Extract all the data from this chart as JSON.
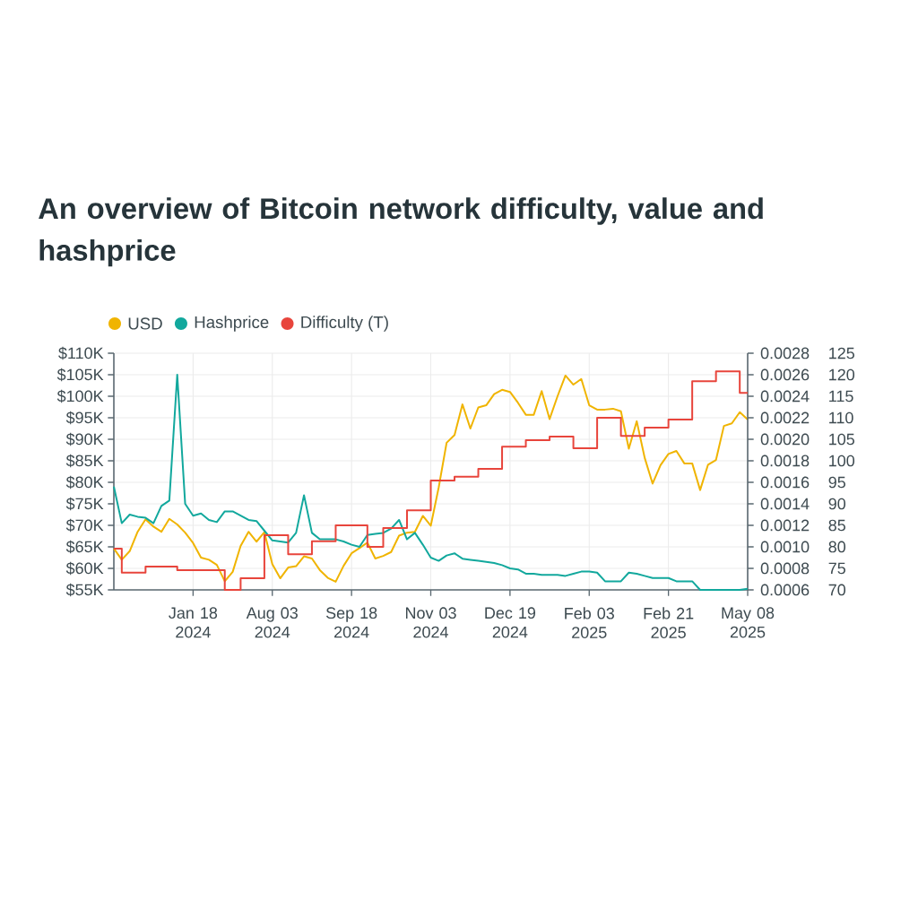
{
  "chart_data": {
    "type": "line",
    "title": "An overview of Bitcoin network difficulty, value and hashprice",
    "categories": [
      null,
      null,
      null,
      null,
      null,
      null,
      null,
      null,
      null,
      null,
      "Jan 18 2024",
      null,
      null,
      null,
      null,
      null,
      null,
      null,
      null,
      null,
      "Aug 03 2024",
      null,
      null,
      null,
      null,
      null,
      null,
      null,
      null,
      null,
      "Sep 18 2024",
      null,
      null,
      null,
      null,
      null,
      null,
      null,
      null,
      null,
      "Nov 03 2024",
      null,
      null,
      null,
      null,
      null,
      null,
      null,
      null,
      null,
      "Dec 19 2024",
      null,
      null,
      null,
      null,
      null,
      null,
      null,
      null,
      null,
      "Feb 03 2025",
      null,
      null,
      null,
      null,
      null,
      null,
      null,
      null,
      null,
      "Feb 21 2025",
      null,
      null,
      null,
      null,
      null,
      null,
      null,
      null,
      null,
      "May 08 2025"
    ],
    "ylim": [
      55000,
      110000
    ],
    "yticks": [
      {
        "value": 55000,
        "label": "$55K"
      },
      {
        "value": 60000,
        "label": "$60K"
      },
      {
        "value": 65000,
        "label": "$65K"
      },
      {
        "value": 70000,
        "label": "$70K"
      },
      {
        "value": 75000,
        "label": "$75K"
      },
      {
        "value": 80000,
        "label": "$80K"
      },
      {
        "value": 85000,
        "label": "$85K"
      },
      {
        "value": 90000,
        "label": "$90K"
      },
      {
        "value": 95000,
        "label": "$95K"
      },
      {
        "value": 100000,
        "label": "$100K"
      },
      {
        "value": 105000,
        "label": "$105K"
      },
      {
        "value": 110000,
        "label": "$110K"
      }
    ],
    "y2lim": [
      0.0006,
      0.0028
    ],
    "y2ticks": [
      {
        "value": 0.0006,
        "label": "0.0006"
      },
      {
        "value": 0.0008,
        "label": "0.0008"
      },
      {
        "value": 0.001,
        "label": "0.0010"
      },
      {
        "value": 0.0012,
        "label": "0.0012"
      },
      {
        "value": 0.0014,
        "label": "0.0014"
      },
      {
        "value": 0.0016,
        "label": "0.0016"
      },
      {
        "value": 0.0018,
        "label": "0.0018"
      },
      {
        "value": 0.002,
        "label": "0.0020"
      },
      {
        "value": 0.0022,
        "label": "0.0022"
      },
      {
        "value": 0.0024,
        "label": "0.0024"
      },
      {
        "value": 0.0026,
        "label": "0.0026"
      },
      {
        "value": 0.0028,
        "label": "0.0028"
      }
    ],
    "y3lim": [
      70,
      125
    ],
    "y3ticks": [
      70,
      75,
      80,
      85,
      90,
      95,
      100,
      105,
      110,
      115,
      120,
      125
    ],
    "grid": true,
    "legend": "top left",
    "series": [
      {
        "name": "USD",
        "color": "#f0b400",
        "values": [
          64600,
          62000,
          64000,
          68500,
          71400,
          69700,
          68500,
          71500,
          70200,
          68300,
          65900,
          62500,
          62000,
          60800,
          57000,
          59200,
          65200,
          68500,
          66200,
          68400,
          61000,
          57700,
          60200,
          60500,
          62800,
          62300,
          59600,
          57800,
          56900,
          60600,
          63500,
          64700,
          66000,
          62300,
          62900,
          63800,
          67600,
          68300,
          68500,
          72200,
          69900,
          78800,
          89200,
          91000,
          98100,
          92500,
          97400,
          97900,
          100500,
          101500,
          101000,
          98500,
          95700,
          95700,
          101200,
          94700,
          100000,
          104800,
          102700,
          104000,
          97900,
          96900,
          96900,
          97100,
          96500,
          87800,
          94200,
          85700,
          79700,
          84000,
          86600,
          87300,
          84400,
          84400,
          78200,
          84100,
          85200,
          93100,
          93700,
          96300,
          94600
        ]
      },
      {
        "name": "Hashprice",
        "color": "#12a89d",
        "axis": "y2",
        "values": [
          0.00156,
          0.00122,
          0.0013,
          0.00128,
          0.00127,
          0.00122,
          0.00138,
          0.00143,
          0.0026,
          0.0014,
          0.00129,
          0.00131,
          0.00125,
          0.00123,
          0.00133,
          0.00133,
          0.00129,
          0.00125,
          0.00124,
          0.00115,
          0.00106,
          0.00105,
          0.00104,
          0.00113,
          0.00148,
          0.00113,
          0.00107,
          0.00107,
          0.00107,
          0.00105,
          0.00102,
          0.001,
          0.00111,
          0.00112,
          0.00113,
          0.00117,
          0.00125,
          0.00107,
          0.00113,
          0.00102,
          0.0009,
          0.00087,
          0.00092,
          0.00094,
          0.00089,
          0.00088,
          0.00087,
          0.00086,
          0.00085,
          0.00083,
          0.0008,
          0.00079,
          0.00075,
          0.00075,
          0.00074,
          0.00074,
          0.00074,
          0.00073,
          0.00075,
          0.00077,
          0.00077,
          0.00076,
          0.00068,
          0.00068,
          0.00068,
          0.00076,
          0.00075,
          0.00073,
          0.00071,
          0.00071,
          0.00071,
          0.00068,
          0.00068,
          0.00068,
          0.0006,
          0.0006,
          0.0006,
          0.0006,
          0.0006,
          0.0006,
          0.00061
        ]
      },
      {
        "name": "Difficulty (T)",
        "color": "#e8453c",
        "axis": "y3",
        "type": "step",
        "values": [
          79.6,
          74.0,
          74.0,
          74.0,
          75.4,
          75.4,
          75.4,
          75.4,
          74.6,
          74.6,
          74.6,
          74.6,
          74.6,
          74.6,
          70,
          70,
          72.7,
          72.7,
          72.7,
          82.7,
          82.7,
          82.7,
          78.3,
          78.3,
          78.3,
          81.3,
          81.3,
          81.3,
          85.0,
          85.0,
          85.0,
          85.0,
          80.0,
          80.0,
          84.4,
          84.4,
          84.4,
          88.5,
          88.5,
          88.5,
          95.4,
          95.4,
          95.4,
          96.3,
          96.3,
          96.3,
          98.1,
          98.1,
          98.1,
          103.3,
          103.3,
          103.3,
          104.8,
          104.8,
          104.8,
          105.6,
          105.6,
          105.6,
          102.9,
          102.9,
          102.9,
          110.0,
          110.0,
          110.0,
          105.8,
          105.8,
          105.8,
          107.7,
          107.7,
          107.7,
          109.6,
          109.6,
          109.6,
          118.5,
          118.5,
          118.5,
          120.8,
          120.8,
          120.8,
          115.8,
          115.8
        ]
      }
    ]
  }
}
